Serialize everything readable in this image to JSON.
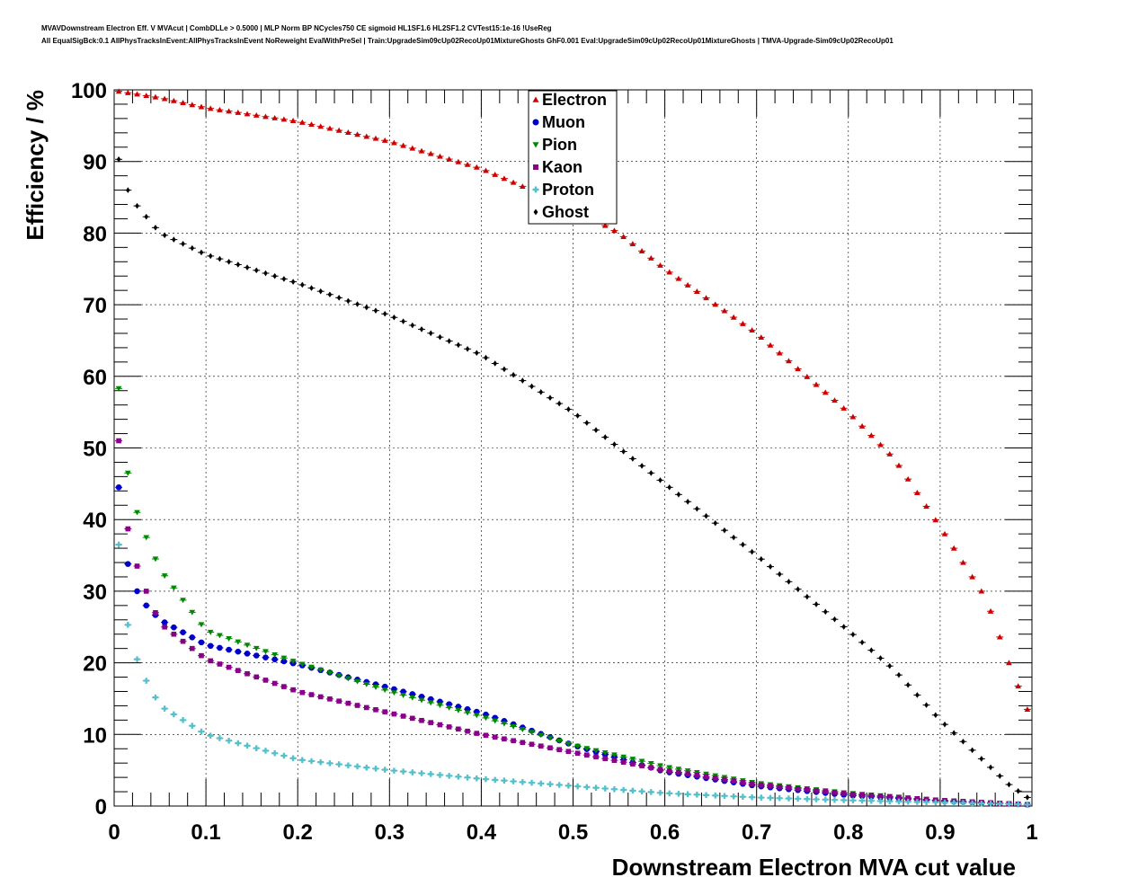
{
  "title_lines": [
    "MVAVDownstream Electron Eff. V MVAcut | CombDLLe > 0.5000 | MLP Norm BP NCycles750 CE sigmoid HL1SF1.6 HL2SF1.2 CVTest15:1e-16 !UseReg",
    "All EqualSigBck:0.1 AllPhysTracksInEvent:AllPhysTracksInEvent NoReweight EvalWithPreSel | Train:UpgradeSim09cUp02RecoUp01MixtureGhosts GhF0.001 Eval:UpgradeSim09cUp02RecoUp01MixtureGhosts | TMVA-Upgrade-Sim09cUp02RecoUp01"
  ],
  "chart_data": {
    "type": "scatter",
    "title": "",
    "xlabel": "Downstream Electron MVA cut value",
    "ylabel": "Efficiency / %",
    "xlim": [
      0,
      1
    ],
    "ylim": [
      0,
      100
    ],
    "x_ticks": [
      "0",
      "0.1",
      "0.2",
      "0.3",
      "0.4",
      "0.5",
      "0.6",
      "0.7",
      "0.8",
      "0.9",
      "1"
    ],
    "y_ticks": [
      "0",
      "10",
      "20",
      "30",
      "40",
      "50",
      "60",
      "70",
      "80",
      "90",
      "100"
    ],
    "grid": true,
    "legend_position": "top-center",
    "x_points": {
      "start": 0.005,
      "step": 0.01,
      "count": 100
    },
    "series": [
      {
        "name": "Electron",
        "color": "#cc0000",
        "marker": "triangle-up",
        "anchors": [
          [
            0.005,
            99.8
          ],
          [
            0.05,
            98.9
          ],
          [
            0.1,
            97.5
          ],
          [
            0.2,
            95.6
          ],
          [
            0.3,
            92.8
          ],
          [
            0.4,
            89.0
          ],
          [
            0.5,
            83.5
          ],
          [
            0.55,
            80.0
          ],
          [
            0.6,
            75.0
          ],
          [
            0.7,
            66.0
          ],
          [
            0.8,
            55.0
          ],
          [
            0.85,
            48.5
          ],
          [
            0.9,
            39.0
          ],
          [
            0.95,
            29.0
          ],
          [
            0.975,
            20.0
          ],
          [
            0.995,
            13.5
          ]
        ]
      },
      {
        "name": "Muon",
        "color": "#0000cc",
        "marker": "circle",
        "anchors": [
          [
            0.005,
            44.5
          ],
          [
            0.015,
            33.8
          ],
          [
            0.025,
            30.0
          ],
          [
            0.035,
            28.0
          ],
          [
            0.05,
            26.0
          ],
          [
            0.1,
            22.5
          ],
          [
            0.2,
            19.8
          ],
          [
            0.3,
            16.5
          ],
          [
            0.4,
            13.0
          ],
          [
            0.5,
            8.5
          ],
          [
            0.6,
            4.8
          ],
          [
            0.7,
            2.8
          ],
          [
            0.8,
            1.5
          ],
          [
            0.9,
            0.7
          ],
          [
            0.995,
            0.2
          ]
        ]
      },
      {
        "name": "Pion",
        "color": "#008800",
        "marker": "triangle-down",
        "anchors": [
          [
            0.005,
            58.3
          ],
          [
            0.015,
            46.5
          ],
          [
            0.025,
            41.0
          ],
          [
            0.035,
            37.5
          ],
          [
            0.05,
            33.0
          ],
          [
            0.1,
            24.5
          ],
          [
            0.2,
            20.0
          ],
          [
            0.3,
            16.0
          ],
          [
            0.4,
            12.5
          ],
          [
            0.5,
            8.5
          ],
          [
            0.6,
            5.5
          ],
          [
            0.7,
            3.2
          ],
          [
            0.8,
            1.8
          ],
          [
            0.9,
            0.8
          ],
          [
            0.995,
            0.2
          ]
        ]
      },
      {
        "name": "Kaon",
        "color": "#880088",
        "marker": "square",
        "anchors": [
          [
            0.005,
            51.0
          ],
          [
            0.015,
            38.7
          ],
          [
            0.025,
            33.5
          ],
          [
            0.035,
            30.0
          ],
          [
            0.05,
            25.5
          ],
          [
            0.1,
            20.5
          ],
          [
            0.2,
            16.0
          ],
          [
            0.3,
            13.0
          ],
          [
            0.4,
            10.0
          ],
          [
            0.5,
            7.5
          ],
          [
            0.6,
            5.0
          ],
          [
            0.7,
            3.0
          ],
          [
            0.8,
            1.7
          ],
          [
            0.9,
            0.8
          ],
          [
            0.995,
            0.2
          ]
        ]
      },
      {
        "name": "Proton",
        "color": "#55c0cc",
        "marker": "cross",
        "anchors": [
          [
            0.005,
            36.5
          ],
          [
            0.015,
            25.3
          ],
          [
            0.025,
            20.5
          ],
          [
            0.035,
            17.5
          ],
          [
            0.05,
            14.0
          ],
          [
            0.1,
            10.0
          ],
          [
            0.2,
            6.5
          ],
          [
            0.3,
            5.0
          ],
          [
            0.4,
            3.8
          ],
          [
            0.5,
            2.8
          ],
          [
            0.6,
            1.8
          ],
          [
            0.7,
            1.2
          ],
          [
            0.8,
            0.8
          ],
          [
            0.9,
            0.5
          ],
          [
            0.995,
            0.2
          ]
        ]
      },
      {
        "name": "Ghost",
        "color": "#000000",
        "marker": "diamond",
        "anchors": [
          [
            0.005,
            90.3
          ],
          [
            0.015,
            86.0
          ],
          [
            0.025,
            83.8
          ],
          [
            0.05,
            80.0
          ],
          [
            0.1,
            77.0
          ],
          [
            0.2,
            73.0
          ],
          [
            0.3,
            68.5
          ],
          [
            0.4,
            63.0
          ],
          [
            0.5,
            55.0
          ],
          [
            0.6,
            45.0
          ],
          [
            0.7,
            35.0
          ],
          [
            0.8,
            24.5
          ],
          [
            0.85,
            19.0
          ],
          [
            0.9,
            12.0
          ],
          [
            0.95,
            6.0
          ],
          [
            0.975,
            3.0
          ],
          [
            0.995,
            1.2
          ]
        ]
      }
    ]
  }
}
